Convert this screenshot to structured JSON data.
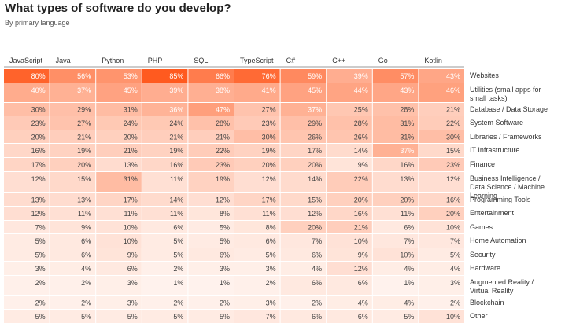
{
  "title": "What types of software do you develop?",
  "subtitle": "By primary language",
  "chart_data": {
    "type": "heatmap",
    "title": "What types of software do you develop?",
    "subtitle": "By primary language",
    "columns": [
      "JavaScript",
      "Java",
      "Python",
      "PHP",
      "SQL",
      "TypeScript",
      "C#",
      "C++",
      "Go",
      "Kotlin"
    ],
    "rows": [
      {
        "label": "Websites",
        "values": [
          80,
          56,
          53,
          85,
          66,
          76,
          59,
          39,
          57,
          43
        ]
      },
      {
        "label": "Utilities (small apps for small tasks)",
        "values": [
          40,
          37,
          45,
          39,
          38,
          41,
          45,
          44,
          43,
          46
        ]
      },
      {
        "label": "Database / Data Storage",
        "values": [
          30,
          29,
          31,
          36,
          47,
          27,
          37,
          25,
          28,
          21
        ]
      },
      {
        "label": "System Software",
        "values": [
          23,
          27,
          24,
          24,
          28,
          23,
          29,
          28,
          31,
          22
        ]
      },
      {
        "label": "Libraries / Frameworks",
        "values": [
          20,
          21,
          20,
          21,
          21,
          30,
          26,
          26,
          31,
          30
        ]
      },
      {
        "label": "IT Infrastructure",
        "values": [
          16,
          19,
          21,
          19,
          22,
          19,
          17,
          14,
          37,
          15
        ]
      },
      {
        "label": "Finance",
        "values": [
          17,
          20,
          13,
          16,
          23,
          20,
          20,
          9,
          16,
          23
        ]
      },
      {
        "label": "Business Intelligence / Data Science / Machine Learning",
        "values": [
          12,
          15,
          31,
          11,
          19,
          12,
          14,
          22,
          13,
          12
        ]
      },
      {
        "label": "Programming Tools",
        "values": [
          13,
          13,
          17,
          14,
          12,
          17,
          15,
          20,
          20,
          16
        ]
      },
      {
        "label": "Entertainment",
        "values": [
          12,
          11,
          11,
          11,
          8,
          11,
          12,
          16,
          11,
          20
        ]
      },
      {
        "label": "Games",
        "values": [
          7,
          9,
          10,
          6,
          5,
          8,
          20,
          21,
          6,
          10
        ]
      },
      {
        "label": "Home Automation",
        "values": [
          5,
          6,
          10,
          5,
          5,
          6,
          7,
          10,
          7,
          7
        ]
      },
      {
        "label": "Security",
        "values": [
          5,
          6,
          9,
          5,
          6,
          5,
          6,
          9,
          10,
          5
        ]
      },
      {
        "label": "Hardware",
        "values": [
          3,
          4,
          6,
          2,
          3,
          3,
          4,
          12,
          4,
          4
        ]
      },
      {
        "label": "Augmented Reality / Virtual Reality",
        "values": [
          2,
          2,
          3,
          1,
          1,
          2,
          6,
          6,
          1,
          3
        ]
      },
      {
        "label": "Blockchain",
        "values": [
          2,
          2,
          3,
          2,
          2,
          3,
          2,
          4,
          4,
          2
        ]
      },
      {
        "label": "Other",
        "values": [
          5,
          5,
          5,
          5,
          5,
          7,
          6,
          6,
          5,
          10
        ]
      }
    ],
    "value_suffix": "%",
    "color_scale": {
      "low": "#fff4ef",
      "high": "#ff5a1f"
    },
    "header_rule_color": "#999999"
  }
}
